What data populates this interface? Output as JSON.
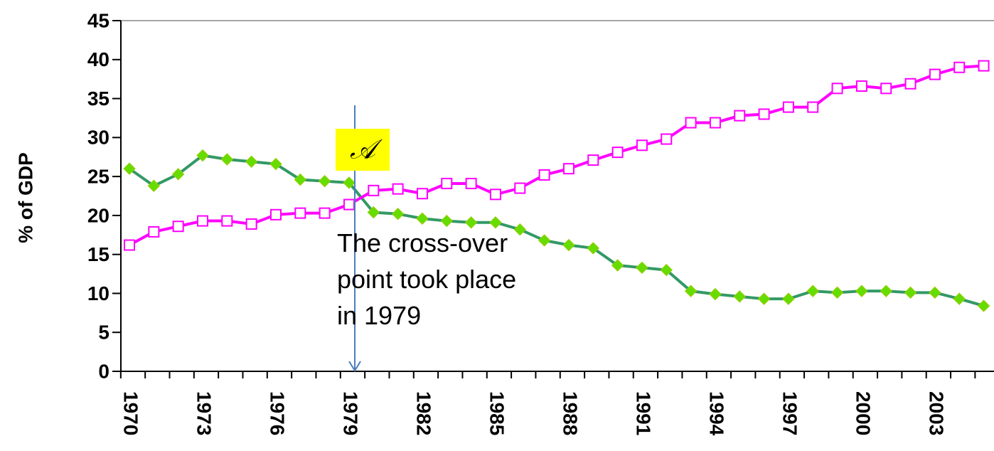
{
  "chart_data": {
    "type": "line",
    "y_label": "% of GDP",
    "categories": [
      "1970",
      null,
      null,
      "1973",
      null,
      null,
      "1976",
      null,
      null,
      "1979",
      null,
      null,
      "1982",
      null,
      null,
      "1985",
      null,
      null,
      "1988",
      null,
      null,
      "1991",
      null,
      null,
      "1994",
      null,
      null,
      "1997",
      null,
      null,
      "2000",
      null,
      null,
      "2003",
      null,
      null
    ],
    "series": [
      {
        "color": "#339966",
        "marker_color": "#66dd00",
        "marker": "diamond",
        "values": [
          26.0,
          23.8,
          25.3,
          27.7,
          27.2,
          26.9,
          26.6,
          24.6,
          24.4,
          24.2,
          20.4,
          20.2,
          19.6,
          19.3,
          19.1,
          19.1,
          18.2,
          16.8,
          16.2,
          15.8,
          13.6,
          13.3,
          13.0,
          10.3,
          9.9,
          9.6,
          9.3,
          9.3,
          10.3,
          10.1,
          10.3,
          10.3,
          10.1,
          10.1,
          9.3,
          8.4
        ]
      },
      {
        "color": "#ff00ff",
        "marker_color": "#ffffff",
        "marker": "square",
        "values": [
          16.2,
          17.9,
          18.6,
          19.3,
          19.3,
          18.9,
          20.1,
          20.3,
          20.3,
          21.4,
          23.2,
          23.4,
          22.8,
          24.1,
          24.1,
          22.7,
          23.5,
          25.2,
          26.0,
          27.1,
          28.1,
          29.0,
          29.8,
          31.9,
          31.9,
          32.8,
          33.0,
          33.9,
          33.9,
          36.3,
          36.6,
          36.3,
          36.9,
          38.1,
          39.0,
          39.2
        ]
      }
    ],
    "ylim": [
      0,
      45
    ],
    "yticks": [
      0,
      5,
      10,
      15,
      20,
      25,
      30,
      35,
      40,
      45
    ],
    "marker_label": "𝒜",
    "annotation": [
      "The cross-over",
      "point took place",
      "in 1979"
    ]
  }
}
